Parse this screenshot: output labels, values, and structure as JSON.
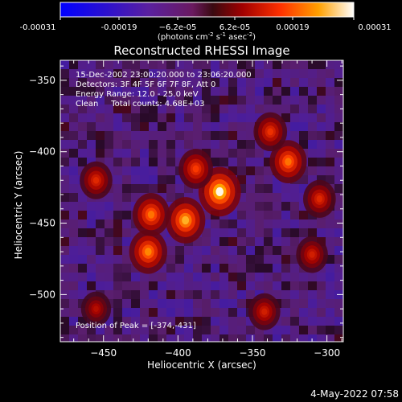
{
  "colorbar": {
    "ticks": [
      "-0.00031",
      "-0.00019",
      "−6.2e-05",
      "6.2e-05",
      "0.00019",
      "0.00031"
    ],
    "unit_main": "(photons cm",
    "unit_exp1": "-2",
    "unit_mid": " s",
    "unit_exp2": "-1",
    "unit_mid2": " asec",
    "unit_exp3": "-2",
    "unit_end": ")"
  },
  "plot": {
    "title": "Reconstructed RHESSI Image",
    "annotations": [
      "15-Dec-2002 23:00:20.000 to 23:06:20.000",
      "Detectors: 3F 4F 5F 6F 7F 8F, Att 0",
      "Energy Range: 12.0 - 25.0 keV",
      "Clean     Total counts: 4.68E+03"
    ],
    "peak_label": "Position of Peak = [-374,-431]"
  },
  "footer_timestamp": "4-May-2022 07:58",
  "chart_data": {
    "type": "heatmap",
    "title": "Reconstructed RHESSI Image",
    "xlabel": "Heliocentric X (arcsec)",
    "ylabel": "Heliocentric Y (arcsec)",
    "xlim": [
      -479,
      -289
    ],
    "ylim": [
      -533,
      -336
    ],
    "x_ticks": [
      -450,
      -400,
      -350,
      -300
    ],
    "y_ticks": [
      -350,
      -400,
      -450,
      -500
    ],
    "x_tick_labels": [
      "−450",
      "−400",
      "−350",
      "−300"
    ],
    "y_tick_labels": [
      "−350",
      "−400",
      "−450",
      "−500"
    ],
    "colorscale_range": [
      -0.00031,
      0.00031
    ],
    "colorscale": "rainbow-to-hot (blue, purple, red, orange, yellow, white)",
    "peak_position": [
      -374,
      -431
    ],
    "bright_sources": [
      {
        "x": -372,
        "y": -428,
        "intensity": 1.0
      },
      {
        "x": -395,
        "y": -448,
        "intensity": 0.85
      },
      {
        "x": -420,
        "y": -470,
        "intensity": 0.75
      },
      {
        "x": -418,
        "y": -444,
        "intensity": 0.7
      },
      {
        "x": -388,
        "y": -412,
        "intensity": 0.55
      },
      {
        "x": -326,
        "y": -407,
        "intensity": 0.7
      },
      {
        "x": -338,
        "y": -386,
        "intensity": 0.5
      },
      {
        "x": -455,
        "y": -420,
        "intensity": 0.45
      },
      {
        "x": -305,
        "y": -433,
        "intensity": 0.45
      },
      {
        "x": -342,
        "y": -512,
        "intensity": 0.4
      },
      {
        "x": -310,
        "y": -472,
        "intensity": 0.4
      },
      {
        "x": -455,
        "y": -510,
        "intensity": 0.3
      }
    ]
  },
  "colors": {
    "background": "#000000",
    "axis": "#ffffff"
  }
}
